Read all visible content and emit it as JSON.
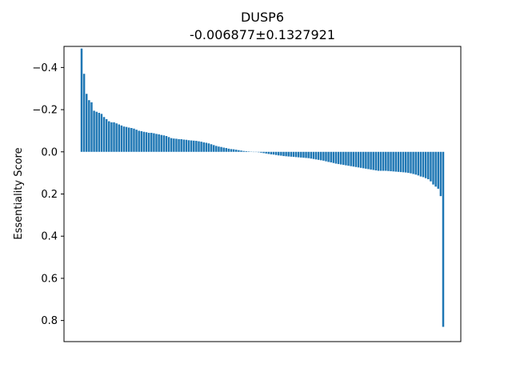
{
  "chart_data": {
    "type": "bar",
    "title": "DUSP6",
    "subtitle": "-0.006877±0.1327921",
    "xlabel": "",
    "ylabel": "Essentiality Score",
    "ylim": [
      0.9,
      -0.5
    ],
    "y_inverted": true,
    "yticks": [
      -0.4,
      -0.2,
      0.0,
      0.2,
      0.4,
      0.6,
      0.8
    ],
    "ytick_labels": [
      "−0.4",
      "−0.2",
      "0.0",
      "0.2",
      "0.4",
      "0.6",
      "0.8"
    ],
    "grid": false,
    "bar_color": "#1f77b4",
    "values": [
      -0.49,
      -0.37,
      -0.275,
      -0.245,
      -0.235,
      -0.195,
      -0.19,
      -0.185,
      -0.18,
      -0.165,
      -0.155,
      -0.145,
      -0.14,
      -0.14,
      -0.135,
      -0.13,
      -0.125,
      -0.12,
      -0.118,
      -0.115,
      -0.113,
      -0.11,
      -0.105,
      -0.1,
      -0.098,
      -0.095,
      -0.093,
      -0.09,
      -0.09,
      -0.088,
      -0.085,
      -0.083,
      -0.08,
      -0.078,
      -0.075,
      -0.07,
      -0.065,
      -0.063,
      -0.062,
      -0.06,
      -0.06,
      -0.058,
      -0.057,
      -0.055,
      -0.054,
      -0.053,
      -0.052,
      -0.05,
      -0.048,
      -0.045,
      -0.043,
      -0.04,
      -0.036,
      -0.032,
      -0.028,
      -0.025,
      -0.023,
      -0.02,
      -0.018,
      -0.015,
      -0.013,
      -0.012,
      -0.01,
      -0.008,
      -0.006,
      -0.004,
      -0.003,
      -0.002,
      -0.001,
      0.0,
      0.001,
      0.002,
      0.004,
      0.006,
      0.008,
      0.01,
      0.012,
      0.013,
      0.015,
      0.017,
      0.018,
      0.02,
      0.021,
      0.022,
      0.023,
      0.024,
      0.025,
      0.026,
      0.027,
      0.028,
      0.029,
      0.03,
      0.032,
      0.034,
      0.036,
      0.038,
      0.04,
      0.042,
      0.045,
      0.048,
      0.05,
      0.053,
      0.056,
      0.058,
      0.06,
      0.062,
      0.064,
      0.066,
      0.068,
      0.07,
      0.072,
      0.074,
      0.076,
      0.078,
      0.08,
      0.082,
      0.084,
      0.086,
      0.088,
      0.09,
      0.09,
      0.09,
      0.09,
      0.091,
      0.092,
      0.093,
      0.094,
      0.095,
      0.096,
      0.097,
      0.098,
      0.1,
      0.102,
      0.105,
      0.108,
      0.112,
      0.117,
      0.12,
      0.125,
      0.13,
      0.14,
      0.155,
      0.165,
      0.175,
      0.21,
      0.83
    ]
  }
}
